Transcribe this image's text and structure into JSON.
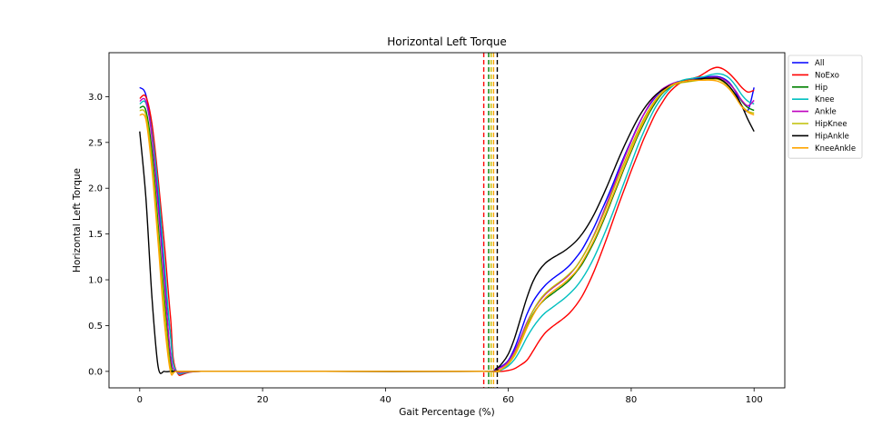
{
  "chart_data": {
    "type": "line",
    "title": "Horizontal Left Torque",
    "xlabel": "Gait Percentage (%)",
    "ylabel": "Horizontal Left Torque",
    "xlim": [
      -5,
      105
    ],
    "ylim": [
      -0.18,
      3.48
    ],
    "xticks": [
      0,
      20,
      40,
      60,
      80,
      100
    ],
    "yticks": [
      0.0,
      0.5,
      1.0,
      1.5,
      2.0,
      2.5,
      3.0
    ],
    "xtick_labels": [
      "0",
      "20",
      "40",
      "60",
      "80",
      "100"
    ],
    "ytick_labels": [
      "0.0",
      "0.5",
      "1.0",
      "1.5",
      "2.0",
      "2.5",
      "3.0"
    ],
    "grid": false,
    "legend_position": "outside-top-right",
    "series": [
      {
        "name": "All",
        "color": "#0000ff",
        "x": [
          0,
          1,
          2,
          3,
          4,
          5,
          6,
          10,
          30,
          56,
          57.5,
          58,
          59,
          60,
          61,
          62,
          63,
          64,
          65,
          66,
          67,
          68,
          69,
          70,
          71,
          72,
          73,
          74,
          75,
          76,
          77,
          78,
          79,
          80,
          81,
          82,
          83,
          84,
          85,
          86,
          87,
          88,
          89,
          90,
          91,
          92,
          93,
          94,
          95,
          96,
          97,
          98,
          99,
          100
        ],
        "y": [
          3.1,
          3.02,
          2.6,
          1.9,
          1.1,
          0.4,
          0.0,
          0.0,
          0.0,
          0.0,
          0.0,
          0.03,
          0.06,
          0.12,
          0.25,
          0.43,
          0.62,
          0.76,
          0.86,
          0.94,
          1.0,
          1.05,
          1.1,
          1.16,
          1.24,
          1.33,
          1.45,
          1.58,
          1.73,
          1.88,
          2.04,
          2.21,
          2.37,
          2.52,
          2.67,
          2.8,
          2.91,
          3.0,
          3.07,
          3.12,
          3.15,
          3.17,
          3.18,
          3.19,
          3.2,
          3.21,
          3.22,
          3.22,
          3.2,
          3.15,
          3.05,
          2.9,
          2.85,
          3.1
        ]
      },
      {
        "name": "NoExo",
        "color": "#ff0000",
        "x": [
          0,
          1,
          2,
          3,
          4,
          5,
          6,
          10,
          30,
          56,
          58,
          59,
          60,
          61,
          62,
          63,
          64,
          65,
          66,
          67,
          68,
          69,
          70,
          71,
          72,
          73,
          74,
          75,
          76,
          77,
          78,
          79,
          80,
          81,
          82,
          83,
          84,
          85,
          86,
          87,
          88,
          89,
          90,
          91,
          92,
          93,
          94,
          95,
          96,
          97,
          98,
          99,
          100
        ],
        "y": [
          2.98,
          3.0,
          2.7,
          2.1,
          1.4,
          0.6,
          0.0,
          0.0,
          0.0,
          0.0,
          0.0,
          0.0,
          0.01,
          0.03,
          0.07,
          0.12,
          0.22,
          0.33,
          0.42,
          0.48,
          0.53,
          0.58,
          0.64,
          0.72,
          0.82,
          0.95,
          1.1,
          1.27,
          1.45,
          1.64,
          1.83,
          2.01,
          2.19,
          2.36,
          2.53,
          2.68,
          2.82,
          2.93,
          3.03,
          3.1,
          3.15,
          3.18,
          3.2,
          3.22,
          3.26,
          3.3,
          3.32,
          3.3,
          3.25,
          3.18,
          3.1,
          3.05,
          3.07
        ]
      },
      {
        "name": "Hip",
        "color": "#008000",
        "x": [
          0,
          1,
          2,
          3,
          4,
          5,
          6,
          10,
          30,
          56,
          58,
          59,
          60,
          61,
          62,
          63,
          64,
          65,
          66,
          67,
          68,
          69,
          70,
          71,
          72,
          73,
          74,
          75,
          76,
          77,
          78,
          79,
          80,
          81,
          82,
          83,
          84,
          85,
          86,
          87,
          88,
          89,
          90,
          91,
          92,
          93,
          94,
          95,
          96,
          97,
          98,
          99,
          100
        ],
        "y": [
          2.88,
          2.85,
          2.4,
          1.6,
          0.8,
          0.1,
          0.0,
          0.0,
          0.0,
          0.0,
          0.0,
          0.03,
          0.08,
          0.18,
          0.32,
          0.48,
          0.62,
          0.72,
          0.79,
          0.84,
          0.89,
          0.94,
          1.0,
          1.08,
          1.17,
          1.29,
          1.42,
          1.57,
          1.73,
          1.9,
          2.07,
          2.24,
          2.4,
          2.56,
          2.7,
          2.83,
          2.94,
          3.03,
          3.09,
          3.13,
          3.16,
          3.17,
          3.18,
          3.19,
          3.2,
          3.21,
          3.21,
          3.19,
          3.14,
          3.06,
          2.95,
          2.88,
          2.85
        ]
      },
      {
        "name": "Knee",
        "color": "#00bfbf",
        "x": [
          0,
          1,
          2,
          3,
          4,
          5,
          6,
          10,
          30,
          56,
          58,
          59,
          60,
          61,
          62,
          63,
          64,
          65,
          66,
          67,
          68,
          69,
          70,
          71,
          72,
          73,
          74,
          75,
          76,
          77,
          78,
          79,
          80,
          81,
          82,
          83,
          84,
          85,
          86,
          87,
          88,
          89,
          90,
          91,
          92,
          93,
          94,
          95,
          96,
          97,
          98,
          99,
          100
        ],
        "y": [
          2.92,
          2.93,
          2.6,
          2.0,
          1.2,
          0.4,
          0.0,
          0.0,
          0.0,
          0.0,
          0.0,
          0.02,
          0.06,
          0.13,
          0.24,
          0.37,
          0.48,
          0.57,
          0.64,
          0.69,
          0.74,
          0.79,
          0.85,
          0.92,
          1.01,
          1.12,
          1.25,
          1.4,
          1.56,
          1.73,
          1.91,
          2.09,
          2.27,
          2.45,
          2.61,
          2.76,
          2.89,
          2.99,
          3.07,
          3.13,
          3.17,
          3.19,
          3.2,
          3.21,
          3.22,
          3.24,
          3.25,
          3.24,
          3.2,
          3.12,
          3.02,
          2.95,
          2.92
        ]
      },
      {
        "name": "Ankle",
        "color": "#bf00bf",
        "x": [
          0,
          1,
          2,
          3,
          4,
          5,
          6,
          10,
          30,
          56,
          57.5,
          58,
          59,
          60,
          61,
          62,
          63,
          64,
          65,
          66,
          67,
          68,
          69,
          70,
          71,
          72,
          73,
          74,
          75,
          76,
          77,
          78,
          79,
          80,
          81,
          82,
          83,
          84,
          85,
          86,
          87,
          88,
          89,
          90,
          91,
          92,
          93,
          94,
          95,
          96,
          97,
          98,
          99,
          100
        ],
        "y": [
          2.95,
          2.95,
          2.55,
          1.8,
          1.0,
          0.2,
          0.0,
          0.0,
          0.0,
          0.0,
          0.0,
          0.02,
          0.05,
          0.11,
          0.22,
          0.37,
          0.53,
          0.66,
          0.76,
          0.84,
          0.9,
          0.95,
          1.0,
          1.06,
          1.14,
          1.24,
          1.36,
          1.5,
          1.66,
          1.83,
          2.0,
          2.18,
          2.35,
          2.51,
          2.66,
          2.8,
          2.92,
          3.01,
          3.08,
          3.12,
          3.15,
          3.16,
          3.17,
          3.18,
          3.19,
          3.2,
          3.21,
          3.21,
          3.19,
          3.14,
          3.06,
          2.96,
          2.9,
          2.96
        ]
      },
      {
        "name": "HipKnee",
        "color": "#bfbf00",
        "x": [
          0,
          1,
          2,
          3,
          4,
          5,
          6,
          10,
          30,
          56,
          58,
          59,
          60,
          61,
          62,
          63,
          64,
          65,
          66,
          67,
          68,
          69,
          70,
          71,
          72,
          73,
          74,
          75,
          76,
          77,
          78,
          79,
          80,
          81,
          82,
          83,
          84,
          85,
          86,
          87,
          88,
          89,
          90,
          91,
          92,
          93,
          94,
          95,
          96,
          97,
          98,
          99,
          100
        ],
        "y": [
          2.85,
          2.8,
          2.3,
          1.5,
          0.7,
          0.05,
          0.0,
          0.0,
          0.0,
          0.0,
          0.0,
          0.03,
          0.09,
          0.19,
          0.34,
          0.51,
          0.66,
          0.77,
          0.85,
          0.91,
          0.96,
          1.01,
          1.07,
          1.14,
          1.24,
          1.36,
          1.49,
          1.64,
          1.8,
          1.97,
          2.14,
          2.3,
          2.46,
          2.61,
          2.75,
          2.87,
          2.97,
          3.05,
          3.1,
          3.13,
          3.15,
          3.16,
          3.17,
          3.18,
          3.19,
          3.19,
          3.19,
          3.16,
          3.1,
          3.01,
          2.9,
          2.84,
          2.82
        ]
      },
      {
        "name": "HipAnkle",
        "color": "#000000",
        "x": [
          0,
          1,
          2,
          3,
          4,
          5,
          6,
          10,
          30,
          56,
          58,
          59,
          60,
          61,
          62,
          63,
          64,
          65,
          66,
          67,
          68,
          69,
          70,
          71,
          72,
          73,
          74,
          75,
          76,
          77,
          78,
          79,
          80,
          81,
          82,
          83,
          84,
          85,
          86,
          87,
          88,
          89,
          90,
          91,
          92,
          93,
          94,
          95,
          96,
          97,
          98,
          99,
          100
        ],
        "y": [
          2.62,
          1.9,
          0.8,
          0.05,
          0.0,
          0.0,
          0.0,
          0.0,
          0.0,
          0.0,
          0.03,
          0.09,
          0.19,
          0.36,
          0.58,
          0.8,
          0.98,
          1.1,
          1.18,
          1.23,
          1.27,
          1.31,
          1.36,
          1.42,
          1.5,
          1.6,
          1.72,
          1.86,
          2.01,
          2.17,
          2.33,
          2.48,
          2.62,
          2.75,
          2.86,
          2.95,
          3.02,
          3.07,
          3.11,
          3.14,
          3.16,
          3.17,
          3.18,
          3.19,
          3.2,
          3.2,
          3.2,
          3.17,
          3.11,
          3.02,
          2.9,
          2.75,
          2.62
        ]
      },
      {
        "name": "KneeAnkle",
        "color": "#ffa500",
        "x": [
          0,
          1,
          2,
          3,
          4,
          5,
          6,
          10,
          30,
          56,
          58,
          59,
          60,
          61,
          62,
          63,
          64,
          65,
          66,
          67,
          68,
          69,
          70,
          71,
          72,
          73,
          74,
          75,
          76,
          77,
          78,
          79,
          80,
          81,
          82,
          83,
          84,
          85,
          86,
          87,
          88,
          89,
          90,
          91,
          92,
          93,
          94,
          95,
          96,
          97,
          98,
          99,
          100
        ],
        "y": [
          2.8,
          2.75,
          2.2,
          1.4,
          0.55,
          0.0,
          0.0,
          0.0,
          0.0,
          0.0,
          0.0,
          0.03,
          0.08,
          0.17,
          0.31,
          0.47,
          0.61,
          0.72,
          0.8,
          0.86,
          0.91,
          0.96,
          1.02,
          1.09,
          1.19,
          1.31,
          1.44,
          1.59,
          1.75,
          1.92,
          2.09,
          2.26,
          2.42,
          2.58,
          2.72,
          2.85,
          2.96,
          3.04,
          3.1,
          3.14,
          3.16,
          3.17,
          3.18,
          3.18,
          3.18,
          3.18,
          3.17,
          3.14,
          3.08,
          2.99,
          2.89,
          2.83,
          2.8
        ]
      }
    ],
    "vlines": [
      {
        "x": 56.0,
        "color": "#ff0000",
        "style": "dashed"
      },
      {
        "x": 56.8,
        "color": "#008000",
        "style": "dashed"
      },
      {
        "x": 57.2,
        "color": "#bfbf00",
        "style": "dashed"
      },
      {
        "x": 57.6,
        "color": "#ffa500",
        "style": "dashed"
      },
      {
        "x": 58.2,
        "color": "#000000",
        "style": "dashed"
      }
    ]
  }
}
